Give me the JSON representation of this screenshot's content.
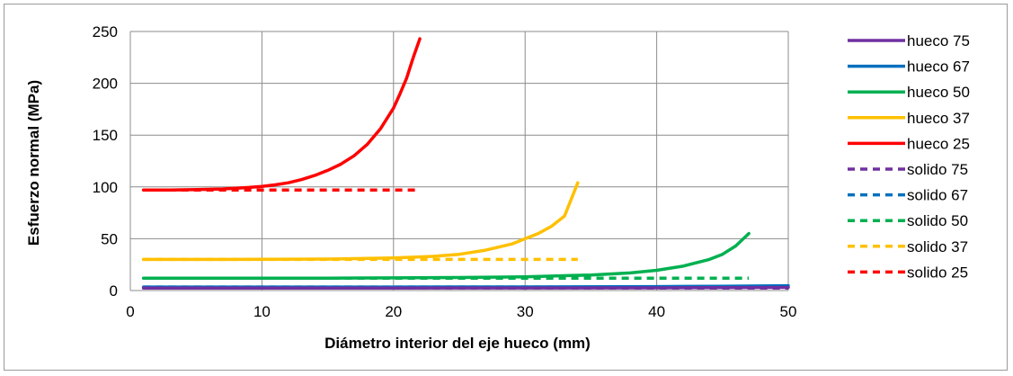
{
  "chart_data": {
    "type": "line",
    "xlabel": "Diámetro interior del eje hueco (mm)",
    "ylabel": "Esfuerzo normal (MPa)",
    "xlim": [
      0,
      50
    ],
    "ylim": [
      0,
      250
    ],
    "x_ticks": [
      "0",
      "10",
      "20",
      "30",
      "40",
      "50"
    ],
    "y_ticks": [
      "0",
      "50",
      "100",
      "150",
      "200",
      "250"
    ],
    "grid": true,
    "legend_position": "right",
    "series": [
      {
        "name": "hueco 75",
        "style": "solid",
        "color": "#7030a0",
        "points": [
          [
            1,
            2.4
          ],
          [
            10,
            2.4
          ],
          [
            20,
            2.4
          ],
          [
            30,
            2.5
          ],
          [
            40,
            2.6
          ],
          [
            45,
            2.8
          ],
          [
            50,
            3.0
          ]
        ]
      },
      {
        "name": "hueco 67",
        "style": "solid",
        "color": "#0070c0",
        "points": [
          [
            1,
            3.4
          ],
          [
            10,
            3.4
          ],
          [
            20,
            3.4
          ],
          [
            30,
            3.5
          ],
          [
            40,
            3.8
          ],
          [
            45,
            4.2
          ],
          [
            50,
            4.7
          ]
        ]
      },
      {
        "name": "hueco 50",
        "style": "solid",
        "color": "#00b050",
        "points": [
          [
            1,
            12
          ],
          [
            5,
            12
          ],
          [
            10,
            12
          ],
          [
            15,
            12
          ],
          [
            20,
            12.2
          ],
          [
            25,
            12.6
          ],
          [
            30,
            13.3
          ],
          [
            35,
            15
          ],
          [
            38,
            17
          ],
          [
            40,
            19.5
          ],
          [
            42,
            23.5
          ],
          [
            44,
            30
          ],
          [
            45,
            35
          ],
          [
            46,
            43
          ],
          [
            47,
            55
          ]
        ]
      },
      {
        "name": "hueco 37",
        "style": "solid",
        "color": "#ffc000",
        "points": [
          [
            1,
            30
          ],
          [
            5,
            30
          ],
          [
            10,
            30.1
          ],
          [
            15,
            30.4
          ],
          [
            20,
            31.5
          ],
          [
            23,
            33
          ],
          [
            25,
            35
          ],
          [
            27,
            39
          ],
          [
            29,
            45
          ],
          [
            30,
            50
          ],
          [
            31,
            55
          ],
          [
            32,
            62
          ],
          [
            33,
            72
          ],
          [
            34,
            104
          ]
        ]
      },
      {
        "name": "hueco 25",
        "style": "solid",
        "color": "#ff0000",
        "points": [
          [
            1,
            97
          ],
          [
            3,
            97
          ],
          [
            5,
            97.5
          ],
          [
            7,
            98
          ],
          [
            9,
            99.5
          ],
          [
            10,
            100.5
          ],
          [
            11,
            102
          ],
          [
            12,
            104
          ],
          [
            13,
            107
          ],
          [
            14,
            111
          ],
          [
            15,
            116
          ],
          [
            16,
            122
          ],
          [
            17,
            130
          ],
          [
            18,
            141
          ],
          [
            19,
            156
          ],
          [
            20,
            176
          ],
          [
            20.5,
            190
          ],
          [
            21,
            205
          ],
          [
            21.5,
            225
          ],
          [
            22,
            243
          ]
        ]
      },
      {
        "name": "solido 75",
        "style": "dashed",
        "color": "#7030a0",
        "points": [
          [
            1,
            2.4
          ],
          [
            50,
            2.4
          ]
        ]
      },
      {
        "name": "solido 67",
        "style": "dashed",
        "color": "#0070c0",
        "points": [
          [
            1,
            3.4
          ],
          [
            50,
            3.4
          ]
        ]
      },
      {
        "name": "solido 50",
        "style": "dashed",
        "color": "#00b050",
        "points": [
          [
            1,
            12
          ],
          [
            47,
            12
          ]
        ]
      },
      {
        "name": "solido 37",
        "style": "dashed",
        "color": "#ffc000",
        "points": [
          [
            1,
            30
          ],
          [
            34,
            30
          ]
        ]
      },
      {
        "name": "solido 25",
        "style": "dashed",
        "color": "#ff0000",
        "points": [
          [
            1,
            97
          ],
          [
            22,
            97
          ]
        ]
      }
    ]
  }
}
